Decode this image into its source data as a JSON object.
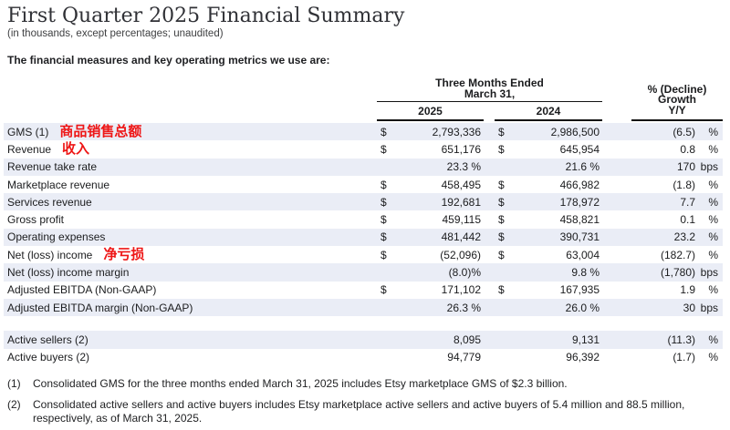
{
  "page": {
    "title": "First Quarter 2025 Financial Summary",
    "subtitle": "(in thousands, except percentages; unaudited)",
    "intro": "The financial measures and key operating metrics we use are:"
  },
  "colors": {
    "stripe": "#eaedf6",
    "annotation_red": "#ee1616",
    "rule": "#121212"
  },
  "table": {
    "period_header": "Three Months Ended\nMarch 31,",
    "col_2025": "2025",
    "col_2024": "2024",
    "yoy_header": "% (Decline)\nGrowth\nY/Y",
    "rows": [
      {
        "label": "GMS (1)",
        "annotation": "商品销售总额",
        "cur1": "$",
        "val1": "2,793,336",
        "cur2": "$",
        "val2": "2,986,500",
        "yoy": "(6.5)",
        "unit": "%"
      },
      {
        "label": "Revenue",
        "annotation": "收入",
        "cur1": "$",
        "val1": "651,176",
        "cur2": "$",
        "val2": "645,954",
        "yoy": "0.8",
        "unit": "%"
      },
      {
        "label": "Revenue take rate",
        "annotation": "",
        "cur1": "",
        "val1": "23.3 %",
        "cur2": "",
        "val2": "21.6 %",
        "yoy": "170",
        "unit": "bps"
      },
      {
        "label": "Marketplace revenue",
        "annotation": "",
        "cur1": "$",
        "val1": "458,495",
        "cur2": "$",
        "val2": "466,982",
        "yoy": "(1.8)",
        "unit": "%"
      },
      {
        "label": "Services revenue",
        "annotation": "",
        "cur1": "$",
        "val1": "192,681",
        "cur2": "$",
        "val2": "178,972",
        "yoy": "7.7",
        "unit": "%"
      },
      {
        "label": "Gross profit",
        "annotation": "",
        "cur1": "$",
        "val1": "459,115",
        "cur2": "$",
        "val2": "458,821",
        "yoy": "0.1",
        "unit": "%"
      },
      {
        "label": "Operating expenses",
        "annotation": "",
        "cur1": "$",
        "val1": "481,442",
        "cur2": "$",
        "val2": "390,731",
        "yoy": "23.2",
        "unit": "%"
      },
      {
        "label": "Net (loss) income",
        "annotation": "净亏损",
        "cur1": "$",
        "val1": "(52,096)",
        "cur2": "$",
        "val2": "63,004",
        "yoy": "(182.7)",
        "unit": "%"
      },
      {
        "label": "Net (loss) income margin",
        "annotation": "",
        "cur1": "",
        "val1": "(8.0)%",
        "cur2": "",
        "val2": "9.8 %",
        "yoy": "(1,780)",
        "unit": "bps"
      },
      {
        "label": "Adjusted EBITDA (Non-GAAP)",
        "annotation": "",
        "cur1": "$",
        "val1": "171,102",
        "cur2": "$",
        "val2": "167,935",
        "yoy": "1.9",
        "unit": "%"
      },
      {
        "label": "Adjusted EBITDA margin (Non-GAAP)",
        "annotation": "",
        "cur1": "",
        "val1": "26.3 %",
        "cur2": "",
        "val2": "26.0 %",
        "yoy": "30",
        "unit": "bps"
      },
      {
        "label": "Active sellers (2)",
        "annotation": "",
        "cur1": "",
        "val1": "8,095",
        "cur2": "",
        "val2": "9,131",
        "yoy": "(11.3)",
        "unit": "%"
      },
      {
        "label": "Active buyers (2)",
        "annotation": "",
        "cur1": "",
        "val1": "94,779",
        "cur2": "",
        "val2": "96,392",
        "yoy": "(1.7)",
        "unit": "%"
      }
    ]
  },
  "footnotes": [
    {
      "num": "(1)",
      "text": "Consolidated GMS for the three months ended March 31, 2025 includes Etsy marketplace GMS of $2.3 billion."
    },
    {
      "num": "(2)",
      "text": "Consolidated active sellers and active buyers includes Etsy marketplace active sellers and active buyers of 5.4 million and 88.5 million,\nrespectively, as of March 31, 2025."
    }
  ]
}
